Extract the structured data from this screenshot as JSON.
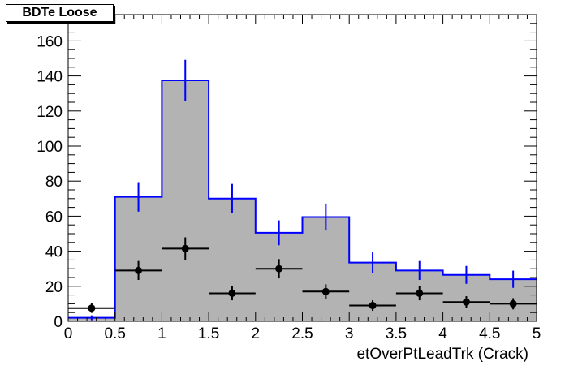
{
  "chart_data": {
    "type": "bar",
    "title": "BDTe Loose",
    "xlabel": "etOverPtLeadTrk (Crack)",
    "ylabel": "",
    "xlim": [
      0,
      5
    ],
    "ylim": [
      0,
      175
    ],
    "bin_width": 0.5,
    "x_ticks": [
      "0",
      "0.5",
      "1",
      "1.5",
      "2",
      "2.5",
      "3",
      "3.5",
      "4",
      "4.5",
      "5"
    ],
    "y_ticks": [
      "0",
      "20",
      "40",
      "60",
      "80",
      "100",
      "120",
      "140",
      "160"
    ],
    "grid": false,
    "series": [
      {
        "style": "filled-histogram",
        "color": "#0000ff",
        "fill": "#b3b3b3",
        "bins": [
          0,
          0.5,
          1,
          1.5,
          2,
          2.5,
          3,
          3.5,
          4,
          4.5
        ],
        "values": [
          2,
          71,
          137.5,
          70,
          50.5,
          59.5,
          33.5,
          29,
          26.5,
          24
        ],
        "errors": [
          1.4,
          8.4,
          11.7,
          8.4,
          7.1,
          7.7,
          5.8,
          5.4,
          5.1,
          4.9
        ]
      },
      {
        "style": "points-with-errors",
        "color": "#000000",
        "bins": [
          0,
          0.5,
          1,
          1.5,
          2,
          2.5,
          3,
          3.5,
          4,
          4.5
        ],
        "values": [
          7.5,
          29,
          41.5,
          16,
          30,
          17,
          9,
          16,
          11,
          10
        ],
        "errors": [
          2.7,
          5.4,
          6.4,
          4,
          5.5,
          4.1,
          3,
          4,
          3.3,
          3.2
        ]
      }
    ]
  }
}
